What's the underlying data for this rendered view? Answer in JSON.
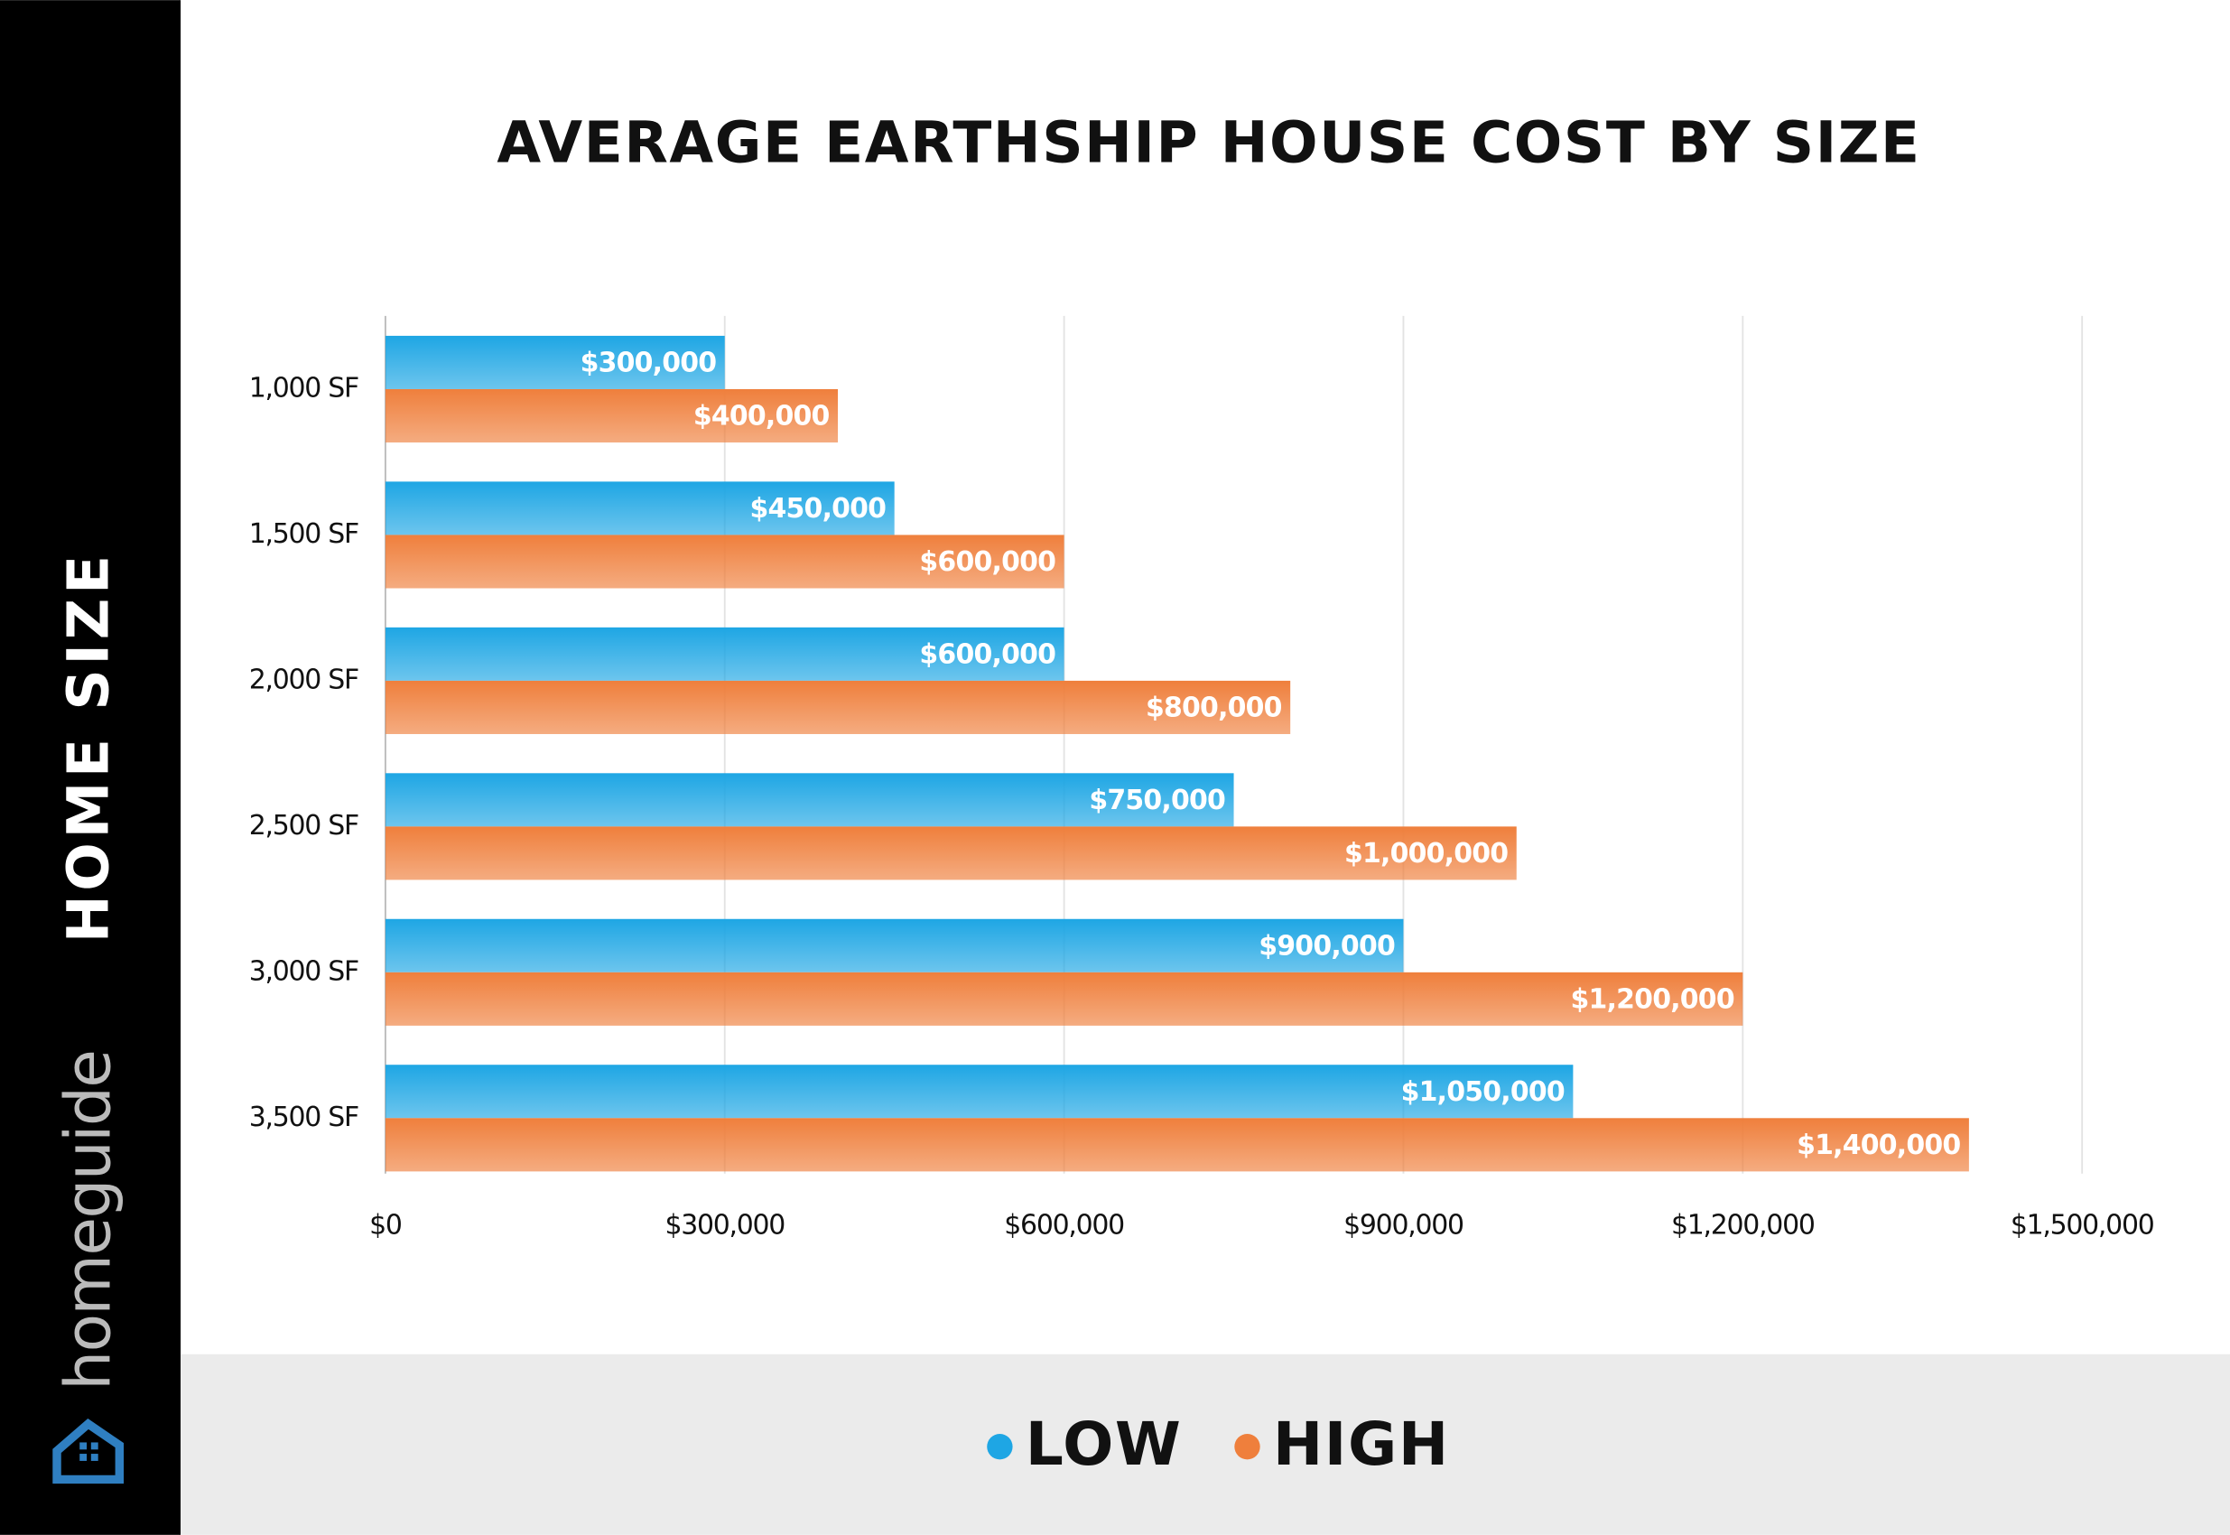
{
  "brand": "homeguide",
  "chart_data": {
    "type": "bar",
    "orientation": "horizontal",
    "title": "AVERAGE EARTHSHIP HOUSE COST BY SIZE",
    "y_label": "HOME SIZE",
    "categories": [
      "1,000 SF",
      "1,500 SF",
      "2,000 SF",
      "2,500 SF",
      "3,000 SF",
      "3,500 SF"
    ],
    "series": [
      {
        "name": "LOW",
        "color": "#1ea6e4",
        "values": [
          300000,
          450000,
          600000,
          750000,
          900000,
          1050000
        ],
        "value_labels": [
          "$300,000",
          "$450,000",
          "$600,000",
          "$750,000",
          "$900,000",
          "$1,050,000"
        ]
      },
      {
        "name": "HIGH",
        "color": "#ef7f3c",
        "values": [
          400000,
          600000,
          800000,
          1000000,
          1200000,
          1400000
        ],
        "value_labels": [
          "$400,000",
          "$600,000",
          "$800,000",
          "$1,000,000",
          "$1,200,000",
          "$1,400,000"
        ]
      }
    ],
    "xlim": [
      0,
      1500000
    ],
    "xticks": [
      {
        "value": 0,
        "label": "$0"
      },
      {
        "value": 300000,
        "label": "$300,000"
      },
      {
        "value": 600000,
        "label": "$600,000"
      },
      {
        "value": 900000,
        "label": "$900,000"
      },
      {
        "value": 1200000,
        "label": "$1,200,000"
      },
      {
        "value": 1500000,
        "label": "$1,500,000"
      }
    ],
    "grid": true,
    "legend": "bottom"
  }
}
